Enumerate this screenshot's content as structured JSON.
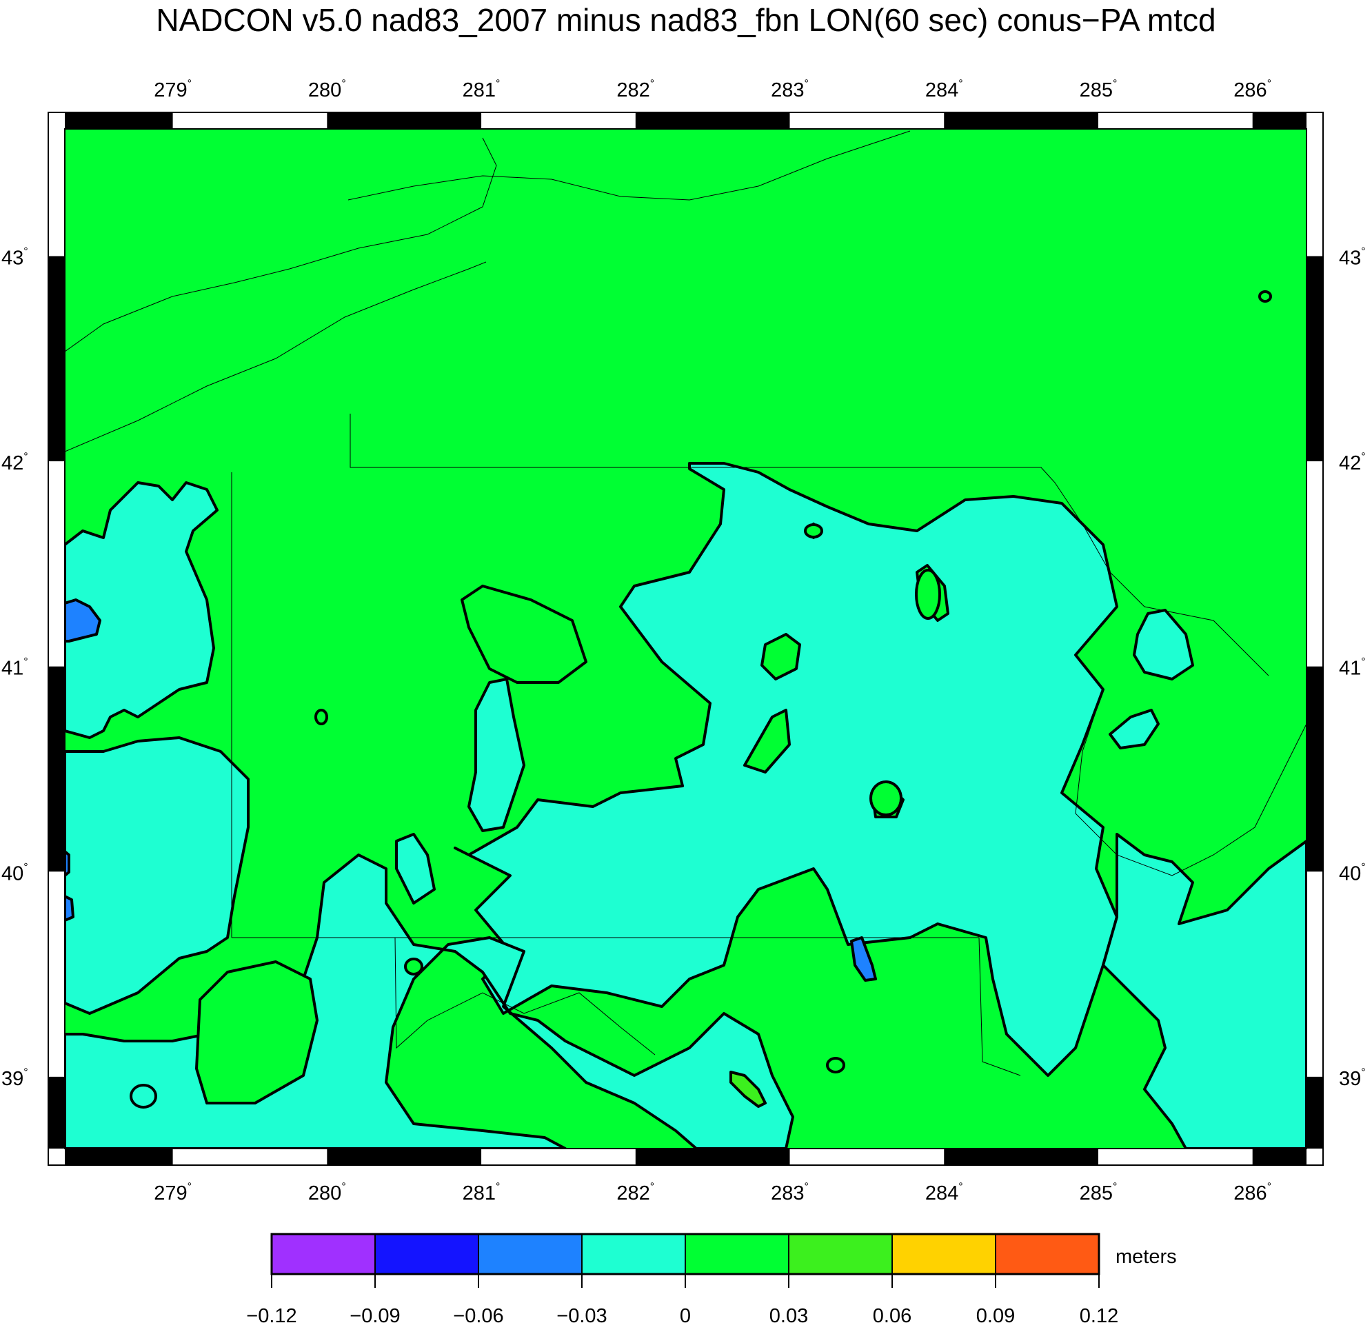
{
  "title": "NADCON v5.0 nad83_2007 minus nad83_fbn LON(60 sec) conus−PA mtcd",
  "map": {
    "lon_range": [
      278.3,
      286.35
    ],
    "lat_range": [
      38.65,
      43.62
    ],
    "lon_ticks": [
      "279",
      "280",
      "281",
      "282",
      "283",
      "284",
      "285",
      "286"
    ],
    "lat_ticks": [
      "39",
      "40",
      "41",
      "42",
      "43"
    ],
    "degree_symbol": "°",
    "background_color": "#00ff33"
  },
  "colorbar": {
    "unit": "meters",
    "tick_labels": [
      "−0.12",
      "−0.09",
      "−0.06",
      "−0.03",
      "0",
      "0.03",
      "0.06",
      "0.09",
      "0.12"
    ],
    "colors": [
      "#a030ff",
      "#1414ff",
      "#1e82ff",
      "#1effd2",
      "#00ff33",
      "#3cf01e",
      "#ffd200",
      "#ff5a14"
    ]
  }
}
